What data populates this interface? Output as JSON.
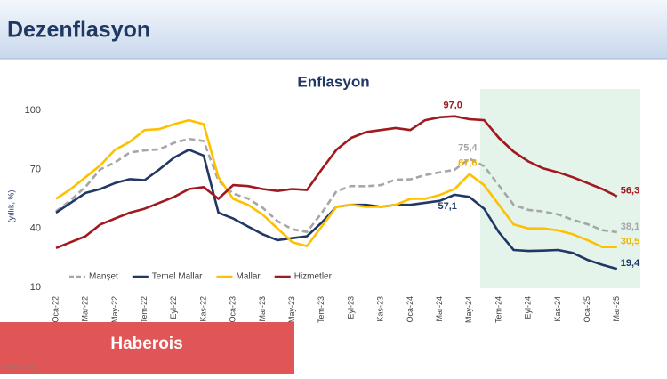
{
  "header": {
    "title": "Dezenflasyon"
  },
  "source": "Kaynak: TÜİK",
  "watermark": "Haberois",
  "chart_data": {
    "type": "line",
    "title": "Enflasyon",
    "y_label": "(yıllık, %)",
    "categories": [
      "Oca-22",
      null,
      "Mar-22",
      null,
      "May-22",
      null,
      "Tem-22",
      null,
      "Eyl-22",
      null,
      "Kas-22",
      null,
      "Oca-23",
      null,
      "Mar-23",
      null,
      "May-23",
      null,
      "Tem-23",
      null,
      "Eyl-23",
      null,
      "Kas-23",
      null,
      "Oca-24",
      null,
      "Mar-24",
      null,
      "May-24",
      null,
      "Tem-24",
      null,
      "Eyl-24",
      null,
      "Kas-24",
      null,
      "Oca-25",
      null,
      "Mar-25"
    ],
    "ylim": [
      10,
      105
    ],
    "yticks": [
      10,
      40,
      70,
      100
    ],
    "grid": false,
    "series": [
      {
        "name": "Manşet",
        "color": "#a6a6a6",
        "dashed": true,
        "values": [
          48.7,
          54.4,
          61.1,
          70.0,
          73.5,
          78.6,
          79.6,
          80.2,
          83.5,
          85.5,
          84.4,
          64.3,
          57.7,
          55.2,
          50.5,
          43.7,
          39.6,
          38.2,
          47.8,
          58.9,
          61.5,
          61.4,
          62.0,
          64.8,
          64.9,
          67.1,
          68.5,
          69.8,
          75.4,
          71.6,
          61.8,
          52.0,
          49.4,
          48.6,
          47.1,
          44.4,
          42.1,
          39.1,
          38.1
        ],
        "value_labels": [
          null,
          null,
          null,
          null,
          null,
          null,
          null,
          null,
          null,
          null,
          null,
          null,
          null,
          null,
          null,
          null,
          null,
          null,
          null,
          null,
          null,
          null,
          null,
          null,
          null,
          null,
          null,
          null,
          "75,4",
          null,
          null,
          null,
          null,
          null,
          null,
          null,
          null,
          null,
          "38,1"
        ]
      },
      {
        "name": "Temel Mallar",
        "color": "#1f3864",
        "dashed": false,
        "values": [
          48,
          53,
          58,
          60,
          63,
          65,
          64.5,
          70,
          76,
          80,
          77,
          48,
          45,
          41,
          37,
          34,
          35,
          36,
          43,
          51,
          52,
          52,
          51,
          52,
          52,
          53,
          54,
          57.1,
          56,
          50,
          38,
          29,
          28.5,
          28.7,
          29,
          27.5,
          24,
          21.5,
          19.4
        ],
        "value_labels": [
          null,
          null,
          null,
          null,
          null,
          null,
          null,
          null,
          null,
          null,
          null,
          null,
          null,
          null,
          null,
          null,
          null,
          null,
          null,
          null,
          null,
          null,
          null,
          null,
          null,
          null,
          null,
          "57,1",
          null,
          null,
          null,
          null,
          null,
          null,
          null,
          null,
          null,
          null,
          "19,4"
        ]
      },
      {
        "name": "Mallar",
        "color": "#ffc000",
        "dashed": false,
        "values": [
          55,
          60,
          66,
          72,
          80,
          84,
          90,
          90.5,
          93,
          95,
          93,
          66,
          55,
          52,
          47,
          40,
          33,
          31,
          41,
          51,
          52,
          51,
          51,
          52,
          55,
          55,
          57,
          60,
          67.6,
          62,
          52,
          42,
          40,
          40,
          39,
          37,
          34,
          30.5,
          30.5
        ],
        "value_labels": [
          null,
          null,
          null,
          null,
          null,
          null,
          null,
          null,
          null,
          null,
          null,
          null,
          null,
          null,
          null,
          null,
          null,
          null,
          null,
          null,
          null,
          null,
          null,
          null,
          null,
          null,
          null,
          null,
          "67,6",
          null,
          null,
          null,
          null,
          null,
          null,
          null,
          null,
          null,
          "30,5"
        ]
      },
      {
        "name": "Hizmetler",
        "color": "#a0191e",
        "dashed": false,
        "values": [
          30,
          33,
          36,
          42,
          45,
          48,
          50,
          53,
          56,
          60,
          61,
          55,
          62,
          61.5,
          60,
          59,
          60,
          59.5,
          70,
          80,
          86,
          89,
          90,
          91,
          90,
          95,
          96.5,
          97.0,
          95.5,
          95,
          86,
          79,
          74,
          70.5,
          68.5,
          66,
          63,
          60,
          56.3
        ],
        "value_labels": [
          null,
          null,
          null,
          null,
          null,
          null,
          null,
          null,
          null,
          null,
          null,
          null,
          null,
          null,
          null,
          null,
          null,
          null,
          null,
          null,
          null,
          null,
          null,
          null,
          null,
          null,
          null,
          "97,0",
          null,
          null,
          null,
          null,
          null,
          null,
          null,
          null,
          null,
          null,
          "56,3"
        ]
      }
    ]
  }
}
